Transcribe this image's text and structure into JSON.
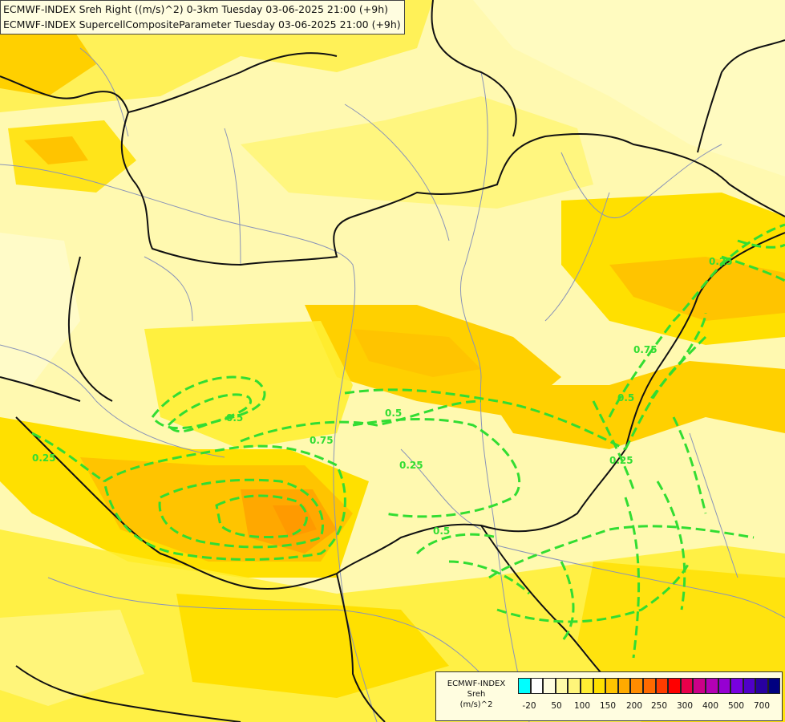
{
  "header": {
    "line1": "ECMWF-INDEX Sreh Right ((m/s)^2) 0-3km Tuesday 03-06-2025 21:00 (+9h)",
    "line2": "ECMWF-INDEX SupercellCompositeParameter Tuesday 03-06-2025 21:00 (+9h)"
  },
  "legend": {
    "title": "ECMWF-INDEX",
    "subtitle": "Sreh",
    "unit": "(m/s)^2",
    "colors": [
      "#00ffff",
      "#ffffff",
      "#fffde0",
      "#fffaa8",
      "#fff57a",
      "#ffee33",
      "#ffe000",
      "#ffc400",
      "#ffaa00",
      "#ff8c00",
      "#ff6a00",
      "#ff3c00",
      "#ff0000",
      "#e8004a",
      "#cc0088",
      "#b400b4",
      "#9600d2",
      "#7800e0",
      "#5000c8",
      "#2800a0",
      "#000080"
    ],
    "ticks": [
      "-20",
      "50",
      "100",
      "150",
      "200",
      "250",
      "300",
      "400",
      "500",
      "700"
    ]
  },
  "contour_labels": [
    "0.25",
    "0.5",
    "0.75",
    "0.25",
    "0.5",
    "0.75",
    "0.25",
    "0.5",
    "0.5",
    "0.25",
    "0.25"
  ],
  "colors": {
    "contour": "#32dd32",
    "border": "#111111",
    "river": "#8a94b8"
  }
}
